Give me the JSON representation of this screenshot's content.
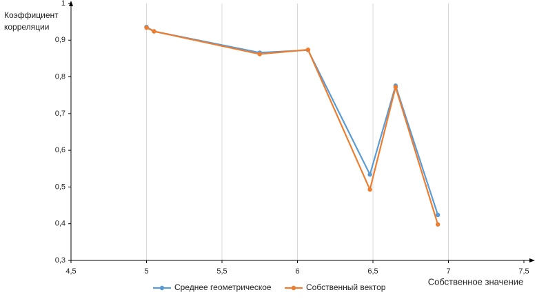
{
  "chart_data": {
    "type": "line",
    "y_axis_title": "Коэффициент корреляции",
    "x_axis_title": "Собственное значение",
    "x": [
      5.0,
      5.05,
      5.75,
      6.07,
      6.48,
      6.65,
      6.93
    ],
    "series": [
      {
        "name": "Среднее геометрическое",
        "color": "#5b9bd5",
        "values": [
          0.936,
          0.924,
          0.866,
          0.873,
          0.534,
          0.776,
          0.424
        ]
      },
      {
        "name": "Собственный вектор",
        "color": "#ed7d31",
        "values": [
          0.934,
          0.924,
          0.862,
          0.874,
          0.493,
          0.772,
          0.398
        ]
      }
    ],
    "xlim": [
      4.5,
      7.5
    ],
    "xticks": [
      {
        "value": 4.5,
        "label": "4,5"
      },
      5,
      {
        "value": 5.5,
        "label": "5,5"
      },
      6,
      {
        "value": 6.5,
        "label": "6,5"
      },
      7,
      {
        "value": 7.5,
        "label": "7,5"
      }
    ],
    "ylim": [
      0.3,
      1
    ],
    "yticks": [
      {
        "value": 0.3,
        "label": "0,3"
      },
      {
        "value": 0.4,
        "label": "0,4"
      },
      {
        "value": 0.5,
        "label": "0,5"
      },
      {
        "value": 0.6,
        "label": "0,6"
      },
      {
        "value": 0.7,
        "label": "0,7"
      },
      {
        "value": 0.8,
        "label": "0,8"
      },
      {
        "value": 0.9,
        "label": "0,9"
      },
      1
    ],
    "grid": "x",
    "legend": "bottom"
  }
}
